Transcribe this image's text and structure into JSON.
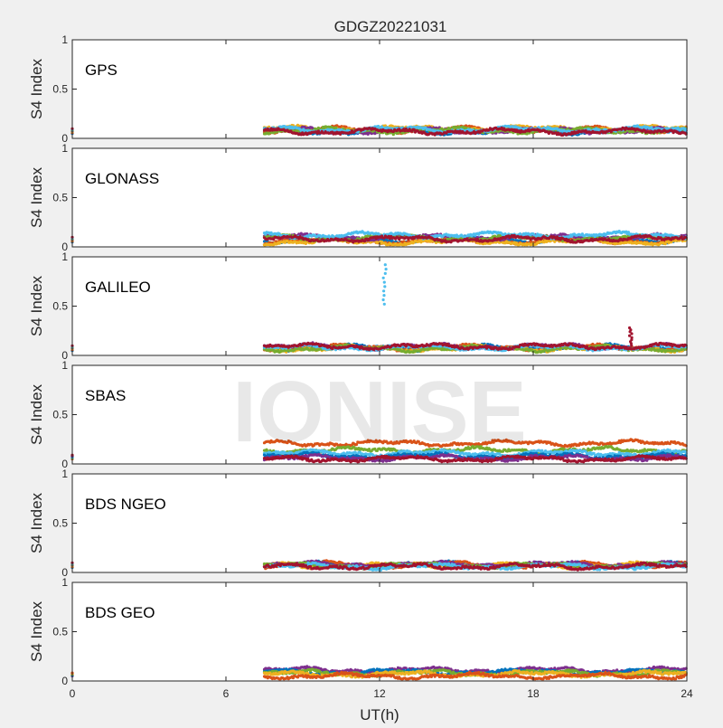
{
  "figure": {
    "title": "GDGZ20221031",
    "watermark": "IONISE",
    "xlabel": "UT(h)",
    "xticks": [
      "0",
      "6",
      "12",
      "18",
      "24"
    ]
  },
  "chart_data": [
    {
      "type": "scatter",
      "label": "GPS",
      "ylabel": "S4 Index",
      "xlim": [
        0,
        24
      ],
      "ylim": [
        0,
        1
      ],
      "xtick_values": [
        0,
        6,
        12,
        18,
        24
      ],
      "ytick_values": [
        0,
        0.5,
        1
      ],
      "ytick_labels": [
        "0",
        "0.5",
        "1"
      ],
      "grid": false,
      "data_start_hour": 7.5,
      "data_end_hour": 24,
      "series": [
        {
          "color": "#0072BD",
          "level": 0.07
        },
        {
          "color": "#D95319",
          "level": 0.09
        },
        {
          "color": "#EDB120",
          "level": 0.1
        },
        {
          "color": "#7E2F8E",
          "level": 0.08
        },
        {
          "color": "#77AC30",
          "level": 0.08
        },
        {
          "color": "#4DBEEE",
          "level": 0.09
        },
        {
          "color": "#A2142F",
          "level": 0.07
        }
      ],
      "features": []
    },
    {
      "type": "scatter",
      "label": "GLONASS",
      "ylabel": "S4 Index",
      "xlim": [
        0,
        24
      ],
      "ylim": [
        0,
        1
      ],
      "xtick_values": [
        0,
        6,
        12,
        18,
        24
      ],
      "ytick_values": [
        0,
        0.5,
        1
      ],
      "ytick_labels": [
        "0",
        "0.5",
        "1"
      ],
      "grid": false,
      "data_start_hour": 7.5,
      "data_end_hour": 24,
      "series": [
        {
          "color": "#0072BD",
          "level": 0.07
        },
        {
          "color": "#D95319",
          "level": 0.06
        },
        {
          "color": "#EDB120",
          "level": 0.05
        },
        {
          "color": "#7E2F8E",
          "level": 0.1
        },
        {
          "color": "#77AC30",
          "level": 0.09
        },
        {
          "color": "#4DBEEE",
          "level": 0.12
        },
        {
          "color": "#A2142F",
          "level": 0.08
        }
      ],
      "features": []
    },
    {
      "type": "scatter",
      "label": "GALILEO",
      "ylabel": "S4 Index",
      "xlim": [
        0,
        24
      ],
      "ylim": [
        0,
        1
      ],
      "xtick_values": [
        0,
        6,
        12,
        18,
        24
      ],
      "ytick_values": [
        0,
        0.5,
        1
      ],
      "ytick_labels": [
        "0",
        "0.5",
        "1"
      ],
      "grid": false,
      "data_start_hour": 7.5,
      "data_end_hour": 24,
      "series": [
        {
          "color": "#0072BD",
          "level": 0.08
        },
        {
          "color": "#D95319",
          "level": 0.08
        },
        {
          "color": "#EDB120",
          "level": 0.07
        },
        {
          "color": "#7E2F8E",
          "level": 0.09
        },
        {
          "color": "#77AC30",
          "level": 0.07
        },
        {
          "color": "#4DBEEE",
          "level": 0.08
        },
        {
          "color": "#A2142F",
          "level": 0.09
        }
      ],
      "features": [
        {
          "hour": 12.2,
          "from": 0.52,
          "to": 0.92,
          "color": "#4DBEEE"
        },
        {
          "hour": 21.8,
          "from": 0.1,
          "to": 0.28,
          "color": "#A2142F"
        }
      ]
    },
    {
      "type": "scatter",
      "label": "SBAS",
      "ylabel": "S4 Index",
      "xlim": [
        0,
        24
      ],
      "ylim": [
        0,
        1
      ],
      "xtick_values": [
        0,
        6,
        12,
        18,
        24
      ],
      "ytick_values": [
        0,
        0.5,
        1
      ],
      "ytick_labels": [
        "0",
        "0.5",
        "1"
      ],
      "grid": false,
      "data_start_hour": 7.5,
      "data_end_hour": 24,
      "series": [
        {
          "color": "#D95319",
          "level": 0.21
        },
        {
          "color": "#77AC30",
          "level": 0.14
        },
        {
          "color": "#4DBEEE",
          "level": 0.11
        },
        {
          "color": "#0072BD",
          "level": 0.08
        },
        {
          "color": "#7E2F8E",
          "level": 0.06
        },
        {
          "color": "#A2142F",
          "level": 0.05
        }
      ],
      "features": []
    },
    {
      "type": "scatter",
      "label": "BDS NGEO",
      "ylabel": "S4 Index",
      "xlim": [
        0,
        24
      ],
      "ylim": [
        0,
        1
      ],
      "xtick_values": [
        0,
        6,
        12,
        18,
        24
      ],
      "ytick_values": [
        0,
        0.5,
        1
      ],
      "ytick_labels": [
        "0",
        "0.5",
        "1"
      ],
      "grid": false,
      "data_start_hour": 7.5,
      "data_end_hour": 24,
      "series": [
        {
          "color": "#0072BD",
          "level": 0.08
        },
        {
          "color": "#D95319",
          "level": 0.08
        },
        {
          "color": "#EDB120",
          "level": 0.07
        },
        {
          "color": "#7E2F8E",
          "level": 0.08
        },
        {
          "color": "#77AC30",
          "level": 0.07
        },
        {
          "color": "#4DBEEE",
          "level": 0.06
        },
        {
          "color": "#A2142F",
          "level": 0.06
        }
      ],
      "features": []
    },
    {
      "type": "scatter",
      "label": "BDS GEO",
      "ylabel": "S4 Index",
      "xlim": [
        0,
        24
      ],
      "ylim": [
        0,
        1
      ],
      "xtick_values": [
        0,
        6,
        12,
        18,
        24
      ],
      "ytick_values": [
        0,
        0.5,
        1
      ],
      "ytick_labels": [
        "0",
        "0.5",
        "1"
      ],
      "grid": false,
      "data_start_hour": 7.5,
      "data_end_hour": 24,
      "series": [
        {
          "color": "#7E2F8E",
          "level": 0.11
        },
        {
          "color": "#0072BD",
          "level": 0.09
        },
        {
          "color": "#77AC30",
          "level": 0.08
        },
        {
          "color": "#EDB120",
          "level": 0.07
        },
        {
          "color": "#D95319",
          "level": 0.05
        }
      ],
      "features": []
    }
  ]
}
